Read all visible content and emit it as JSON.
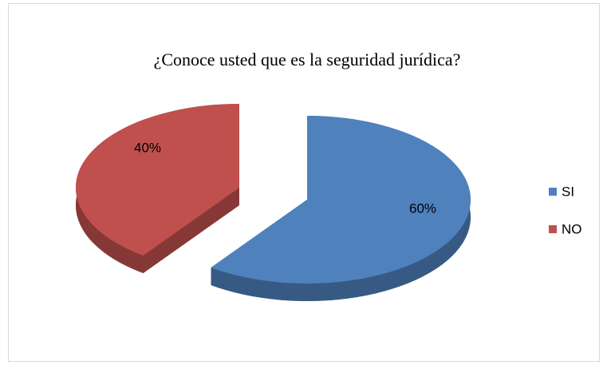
{
  "chart_data": {
    "type": "pie",
    "title": "¿Conoce usted que es la seguridad jurídica?",
    "categories": [
      "SI",
      "NO"
    ],
    "values": [
      60,
      40
    ],
    "value_labels": [
      "60%",
      "40%"
    ],
    "colors": [
      "#4f81bd",
      "#c0504d"
    ],
    "legend": "right"
  }
}
